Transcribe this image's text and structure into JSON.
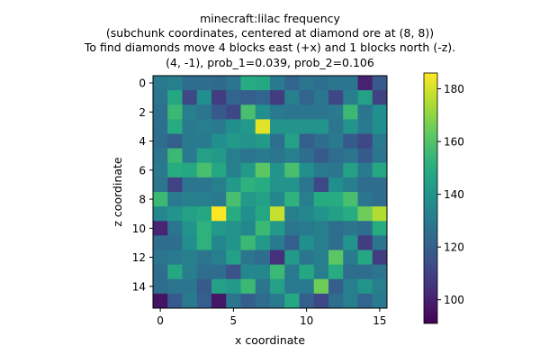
{
  "chart_data": {
    "type": "heatmap",
    "title_lines": [
      "minecraft:lilac frequency",
      "(subchunk coordinates, centered at diamond ore at (8, 8))",
      "To find diamonds move 4 blocks east (+x) and 1 blocks north (-z).",
      "(4, -1), prob_1=0.039, prob_2=0.106"
    ],
    "xlabel": "x coordinate",
    "ylabel": "z coordinate",
    "x_ticks": [
      0,
      5,
      10,
      15
    ],
    "y_ticks": [
      0,
      2,
      4,
      6,
      8,
      10,
      12,
      14
    ],
    "colorbar_ticks": [
      100,
      120,
      140,
      160,
      180
    ],
    "value_range": [
      91,
      186
    ],
    "colormap": "viridis",
    "grid": false,
    "legend": "colorbar-right",
    "values": [
      [
        130,
        132,
        125,
        125,
        124,
        128,
        150,
        148,
        130,
        122,
        128,
        126,
        128,
        128,
        100,
        118
      ],
      [
        128,
        148,
        112,
        138,
        108,
        122,
        120,
        122,
        108,
        132,
        122,
        128,
        112,
        132,
        145,
        110
      ],
      [
        126,
        155,
        132,
        128,
        118,
        112,
        158,
        138,
        130,
        128,
        128,
        128,
        130,
        155,
        128,
        138
      ],
      [
        126,
        150,
        130,
        132,
        130,
        138,
        142,
        182,
        140,
        140,
        140,
        140,
        128,
        140,
        130,
        138
      ],
      [
        125,
        120,
        130,
        130,
        138,
        142,
        140,
        142,
        126,
        145,
        120,
        125,
        130,
        118,
        112,
        130
      ],
      [
        128,
        155,
        130,
        145,
        142,
        132,
        128,
        130,
        128,
        132,
        125,
        118,
        125,
        128,
        118,
        128
      ],
      [
        130,
        150,
        148,
        158,
        148,
        132,
        142,
        162,
        140,
        158,
        138,
        130,
        128,
        145,
        130,
        148
      ],
      [
        128,
        110,
        128,
        128,
        132,
        142,
        152,
        150,
        140,
        140,
        128,
        112,
        138,
        132,
        125,
        125
      ],
      [
        155,
        130,
        132,
        132,
        130,
        158,
        142,
        145,
        135,
        152,
        132,
        150,
        150,
        158,
        128,
        125
      ],
      [
        135,
        140,
        145,
        148,
        186,
        150,
        138,
        148,
        178,
        132,
        135,
        140,
        145,
        150,
        165,
        175
      ],
      [
        101,
        128,
        140,
        152,
        142,
        140,
        135,
        155,
        142,
        128,
        130,
        132,
        125,
        128,
        125,
        150
      ],
      [
        125,
        125,
        138,
        152,
        135,
        140,
        155,
        142,
        130,
        120,
        138,
        132,
        125,
        140,
        108,
        128
      ],
      [
        128,
        130,
        132,
        128,
        132,
        145,
        128,
        125,
        104,
        142,
        128,
        132,
        162,
        130,
        148,
        108
      ],
      [
        125,
        148,
        132,
        125,
        125,
        115,
        135,
        135,
        155,
        130,
        148,
        132,
        150,
        125,
        125,
        128
      ],
      [
        125,
        128,
        128,
        118,
        145,
        142,
        155,
        128,
        145,
        130,
        130,
        165,
        120,
        132,
        140,
        132
      ],
      [
        96,
        118,
        130,
        120,
        97,
        128,
        120,
        125,
        130,
        148,
        120,
        112,
        125,
        132,
        122,
        130
      ]
    ]
  }
}
